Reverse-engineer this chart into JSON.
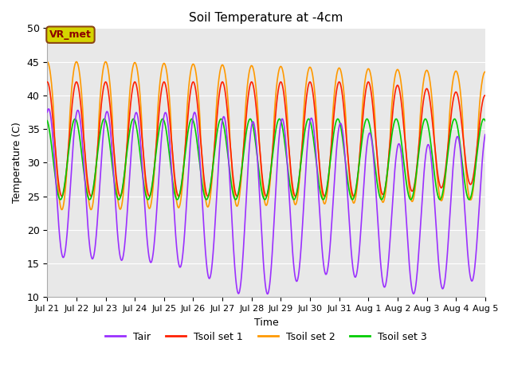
{
  "title": "Soil Temperature at -4cm",
  "xlabel": "Time",
  "ylabel": "Temperature (C)",
  "ylim": [
    10,
    50
  ],
  "background_color": "#e8e8e8",
  "grid_color": "white",
  "annotation_text": "VR_met",
  "annotation_box_facecolor": "#d4d400",
  "annotation_text_color": "#8b0000",
  "annotation_edge_color": "#8b4513",
  "line_colors": {
    "Tair": "#9b30ff",
    "Tsoil set 1": "#ff2000",
    "Tsoil set 2": "#ff9900",
    "Tsoil set 3": "#00cc00"
  },
  "line_width": 1.2,
  "x_tick_labels": [
    "Jul 21",
    "Jul 22",
    "Jul 23",
    "Jul 24",
    "Jul 25",
    "Jul 26",
    "Jul 27",
    "Jul 28",
    "Jul 29",
    "Jul 30",
    "Jul 31",
    "Aug 1",
    "Aug 2",
    "Aug 3",
    "Aug 4",
    "Aug 5"
  ],
  "n_days": 15,
  "figsize": [
    6.4,
    4.8
  ],
  "dpi": 100
}
